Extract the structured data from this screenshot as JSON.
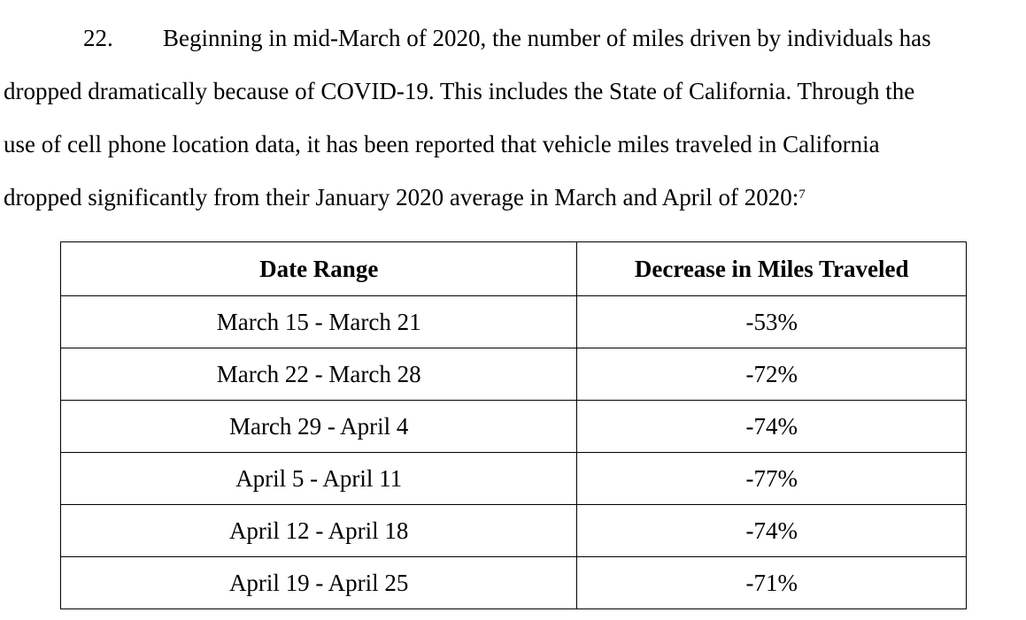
{
  "paragraph": {
    "number": "22.",
    "lines": [
      "Beginning in mid-March of 2020, the number of miles driven by individuals has",
      "dropped dramatically because of COVID-19. This includes the State of California. Through the",
      "use of cell phone location data, it has been reported that vehicle miles traveled in California",
      "dropped significantly from their January 2020 average in March and April of 2020:"
    ],
    "footnote_ref": "7"
  },
  "table": {
    "headers": [
      "Date Range",
      "Decrease in Miles Traveled"
    ],
    "rows": [
      [
        "March 15 - March 21",
        "-53%"
      ],
      [
        "March 22 - March 28",
        "-72%"
      ],
      [
        "March 29 - April 4",
        "-74%"
      ],
      [
        "April 5 - April 11",
        "-77%"
      ],
      [
        "April 12 - April 18",
        "-74%"
      ],
      [
        "April 19 - April 25",
        "-71%"
      ]
    ]
  }
}
